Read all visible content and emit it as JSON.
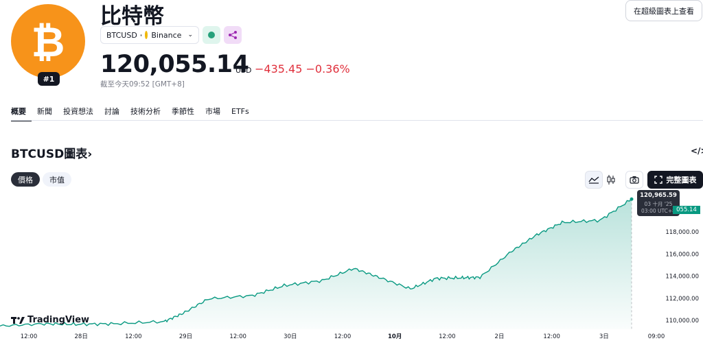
{
  "asset": {
    "name": "比特幣",
    "rank": "#1",
    "symbol": "BTCUSD",
    "exchange": "Binance",
    "price": "120,055.14",
    "currency": "USD",
    "change": "−435.45 −0.36%",
    "as_of": "截至今天09:52 [GMT+8]",
    "logo_color": "#f7931a"
  },
  "header": {
    "full_chart_link": "在超級圖表上查看"
  },
  "tabs": [
    {
      "label": "概要",
      "active": true
    },
    {
      "label": "新聞"
    },
    {
      "label": "投資想法"
    },
    {
      "label": "討論"
    },
    {
      "label": "技術分析"
    },
    {
      "label": "季節性"
    },
    {
      "label": "市場"
    },
    {
      "label": "ETFs"
    }
  ],
  "chart_section": {
    "title": "BTCUSD圖表",
    "chevron": "›",
    "embed_icon": "</>",
    "toggles": {
      "price": "價格",
      "market_cap": "市值"
    },
    "full_chart_button": "完整圖表",
    "branding": "TradingView"
  },
  "tooltip": {
    "value": "120,965.59",
    "date": "03 十月 '25",
    "time": "03:00 UTC+8"
  },
  "last_price_tag": "055.14",
  "colors": {
    "line": "#089981",
    "down": "#e0303c",
    "accent": "#131722"
  },
  "chart_data": {
    "type": "area",
    "x_ticks": [
      "12:00",
      "28日",
      "12:00",
      "29日",
      "12:00",
      "30日",
      "12:00",
      "10月",
      "12:00",
      "2日",
      "12:00",
      "3日",
      "09:00"
    ],
    "y_ticks": [
      "110,000.00",
      "112,000.00",
      "114,000.00",
      "116,000.00",
      "118,000.00"
    ],
    "ylim": [
      109200,
      121600
    ],
    "x": [
      0,
      0.07,
      0.12,
      0.18,
      0.26,
      0.29,
      0.33,
      0.4,
      0.45,
      0.51,
      0.56,
      0.6,
      0.65,
      0.69,
      0.73,
      0.76,
      0.81,
      0.85,
      0.89,
      0.95,
      1.0
    ],
    "values": [
      109500,
      109700,
      109650,
      109700,
      109900,
      110650,
      111950,
      112250,
      113150,
      113600,
      114700,
      113900,
      112850,
      113800,
      113850,
      113900,
      116250,
      117750,
      118850,
      119050,
      120965
    ]
  }
}
